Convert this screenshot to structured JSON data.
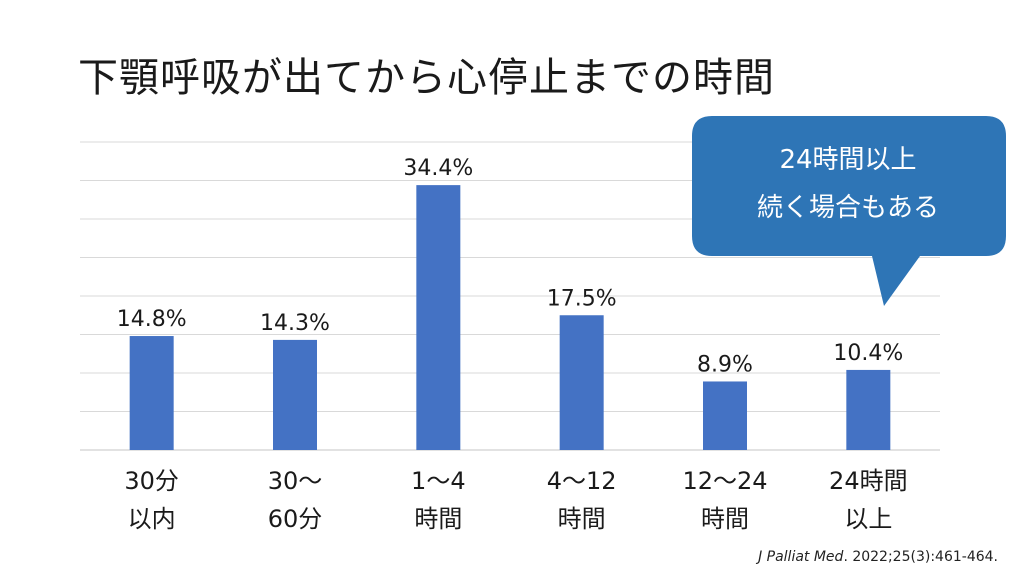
{
  "title": "下顎呼吸が出てから心停止までの時間",
  "chart_data": {
    "type": "bar",
    "categories": [
      [
        "30分",
        "以内"
      ],
      [
        "30〜",
        "60分"
      ],
      [
        "1〜4",
        "時間"
      ],
      [
        "4〜12",
        "時間"
      ],
      [
        "12〜24",
        "時間"
      ],
      [
        "24時間",
        "以上"
      ]
    ],
    "values": [
      14.8,
      14.3,
      34.4,
      17.5,
      8.9,
      10.4
    ],
    "data_labels": [
      "14.8%",
      "14.3%",
      "34.4%",
      "17.5%",
      "8.9%",
      "10.4%"
    ],
    "ylim": [
      0,
      40
    ],
    "y_gridlines": [
      0,
      5,
      10,
      15,
      20,
      25,
      30,
      35,
      40
    ],
    "grid": true,
    "bar_color": "#4472c4",
    "gridline_color": "#d9d9d9"
  },
  "callout": {
    "lines": [
      "24時間以上",
      "続く場合もある"
    ],
    "color": "#2e75b6"
  },
  "citation": {
    "journal": "J Palliat Med",
    "rest": ". 2022;25(3):461-464."
  }
}
